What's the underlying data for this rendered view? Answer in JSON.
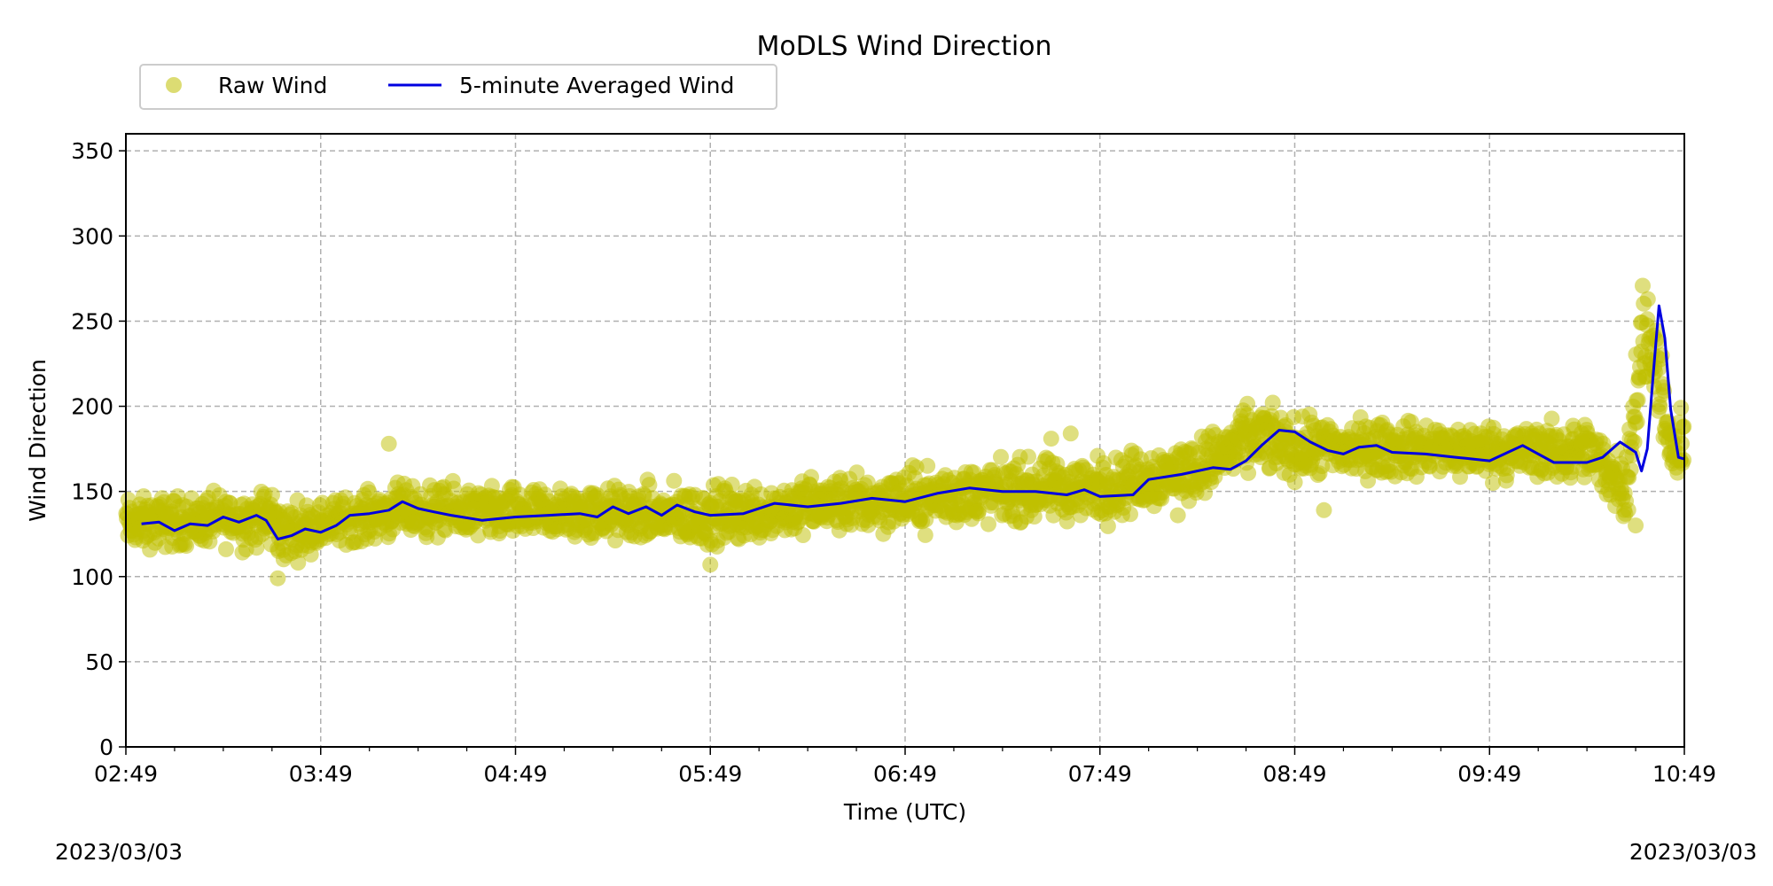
{
  "chart_data": {
    "type": "scatter",
    "title": "MoDLS Wind Direction",
    "xlabel": "Time (UTC)",
    "ylabel": "Wind Direction",
    "x_tick_labels": [
      "02:49",
      "03:49",
      "04:49",
      "05:49",
      "06:49",
      "07:49",
      "08:49",
      "09:49",
      "10:49"
    ],
    "x_range_hours": [
      0,
      8
    ],
    "ylim": [
      0,
      360
    ],
    "y_ticks": [
      0,
      50,
      100,
      150,
      200,
      250,
      300,
      350
    ],
    "grid": true,
    "legend_position": "top-left",
    "date_left": "2023/03/03",
    "date_right": "2023/03/03",
    "series": [
      {
        "name": "Raw Wind",
        "kind": "scatter",
        "color": "#bfbf00",
        "band_points": [
          {
            "t": 0.0,
            "lo": 110,
            "hi": 152
          },
          {
            "t": 0.5,
            "lo": 112,
            "hi": 155
          },
          {
            "t": 0.75,
            "lo": 108,
            "hi": 160
          },
          {
            "t": 0.8,
            "lo": 100,
            "hi": 150
          },
          {
            "t": 1.0,
            "lo": 112,
            "hi": 150
          },
          {
            "t": 1.4,
            "lo": 118,
            "hi": 160
          },
          {
            "t": 2.0,
            "lo": 115,
            "hi": 158
          },
          {
            "t": 2.5,
            "lo": 114,
            "hi": 160
          },
          {
            "t": 3.0,
            "lo": 110,
            "hi": 160
          },
          {
            "t": 3.5,
            "lo": 118,
            "hi": 165
          },
          {
            "t": 4.0,
            "lo": 120,
            "hi": 170
          },
          {
            "t": 4.5,
            "lo": 125,
            "hi": 175
          },
          {
            "t": 5.0,
            "lo": 125,
            "hi": 178
          },
          {
            "t": 5.5,
            "lo": 140,
            "hi": 188
          },
          {
            "t": 5.8,
            "lo": 155,
            "hi": 210
          },
          {
            "t": 6.0,
            "lo": 150,
            "hi": 200
          },
          {
            "t": 6.5,
            "lo": 152,
            "hi": 198
          },
          {
            "t": 7.0,
            "lo": 152,
            "hi": 196
          },
          {
            "t": 7.5,
            "lo": 148,
            "hi": 198
          },
          {
            "t": 7.7,
            "lo": 125,
            "hi": 180
          },
          {
            "t": 7.78,
            "lo": 180,
            "hi": 288
          },
          {
            "t": 7.85,
            "lo": 200,
            "hi": 270
          },
          {
            "t": 7.92,
            "lo": 145,
            "hi": 200
          },
          {
            "t": 8.0,
            "lo": 140,
            "hi": 205
          }
        ],
        "outliers": [
          {
            "t": 0.78,
            "y": 99
          },
          {
            "t": 1.35,
            "y": 178
          },
          {
            "t": 3.0,
            "y": 107
          },
          {
            "t": 4.75,
            "y": 181
          },
          {
            "t": 4.85,
            "y": 184
          },
          {
            "t": 5.4,
            "y": 136
          },
          {
            "t": 6.15,
            "y": 139
          },
          {
            "t": 7.75,
            "y": 130
          }
        ]
      },
      {
        "name": "5-minute Averaged Wind",
        "kind": "line",
        "color": "#0000e0",
        "points": [
          {
            "t": 0.08,
            "y": 131
          },
          {
            "t": 0.17,
            "y": 132
          },
          {
            "t": 0.25,
            "y": 127
          },
          {
            "t": 0.33,
            "y": 131
          },
          {
            "t": 0.42,
            "y": 130
          },
          {
            "t": 0.5,
            "y": 135
          },
          {
            "t": 0.58,
            "y": 132
          },
          {
            "t": 0.67,
            "y": 136
          },
          {
            "t": 0.72,
            "y": 133
          },
          {
            "t": 0.78,
            "y": 122
          },
          {
            "t": 0.85,
            "y": 124
          },
          {
            "t": 0.92,
            "y": 128
          },
          {
            "t": 1.0,
            "y": 126
          },
          {
            "t": 1.08,
            "y": 130
          },
          {
            "t": 1.15,
            "y": 136
          },
          {
            "t": 1.25,
            "y": 137
          },
          {
            "t": 1.35,
            "y": 139
          },
          {
            "t": 1.42,
            "y": 144
          },
          {
            "t": 1.5,
            "y": 140
          },
          {
            "t": 1.58,
            "y": 138
          },
          {
            "t": 1.67,
            "y": 136
          },
          {
            "t": 1.83,
            "y": 133
          },
          {
            "t": 2.0,
            "y": 135
          },
          {
            "t": 2.17,
            "y": 136
          },
          {
            "t": 2.33,
            "y": 137
          },
          {
            "t": 2.42,
            "y": 135
          },
          {
            "t": 2.5,
            "y": 141
          },
          {
            "t": 2.58,
            "y": 137
          },
          {
            "t": 2.67,
            "y": 141
          },
          {
            "t": 2.75,
            "y": 136
          },
          {
            "t": 2.83,
            "y": 142
          },
          {
            "t": 2.92,
            "y": 138
          },
          {
            "t": 3.0,
            "y": 136
          },
          {
            "t": 3.17,
            "y": 137
          },
          {
            "t": 3.33,
            "y": 143
          },
          {
            "t": 3.5,
            "y": 141
          },
          {
            "t": 3.67,
            "y": 143
          },
          {
            "t": 3.83,
            "y": 146
          },
          {
            "t": 4.0,
            "y": 144
          },
          {
            "t": 4.17,
            "y": 149
          },
          {
            "t": 4.33,
            "y": 152
          },
          {
            "t": 4.5,
            "y": 150
          },
          {
            "t": 4.67,
            "y": 150
          },
          {
            "t": 4.83,
            "y": 148
          },
          {
            "t": 4.92,
            "y": 151
          },
          {
            "t": 5.0,
            "y": 147
          },
          {
            "t": 5.17,
            "y": 148
          },
          {
            "t": 5.25,
            "y": 157
          },
          {
            "t": 5.42,
            "y": 160
          },
          {
            "t": 5.58,
            "y": 164
          },
          {
            "t": 5.67,
            "y": 163
          },
          {
            "t": 5.75,
            "y": 168
          },
          {
            "t": 5.83,
            "y": 177
          },
          {
            "t": 5.92,
            "y": 186
          },
          {
            "t": 6.0,
            "y": 185
          },
          {
            "t": 6.08,
            "y": 179
          },
          {
            "t": 6.17,
            "y": 174
          },
          {
            "t": 6.25,
            "y": 172
          },
          {
            "t": 6.33,
            "y": 176
          },
          {
            "t": 6.42,
            "y": 177
          },
          {
            "t": 6.5,
            "y": 173
          },
          {
            "t": 6.67,
            "y": 172
          },
          {
            "t": 6.83,
            "y": 170
          },
          {
            "t": 7.0,
            "y": 168
          },
          {
            "t": 7.17,
            "y": 177
          },
          {
            "t": 7.33,
            "y": 167
          },
          {
            "t": 7.5,
            "y": 167
          },
          {
            "t": 7.58,
            "y": 170
          },
          {
            "t": 7.67,
            "y": 179
          },
          {
            "t": 7.75,
            "y": 173
          },
          {
            "t": 7.78,
            "y": 162
          },
          {
            "t": 7.81,
            "y": 175
          },
          {
            "t": 7.84,
            "y": 218
          },
          {
            "t": 7.87,
            "y": 259
          },
          {
            "t": 7.9,
            "y": 240
          },
          {
            "t": 7.93,
            "y": 198
          },
          {
            "t": 7.97,
            "y": 170
          },
          {
            "t": 8.0,
            "y": 169
          }
        ]
      }
    ]
  }
}
